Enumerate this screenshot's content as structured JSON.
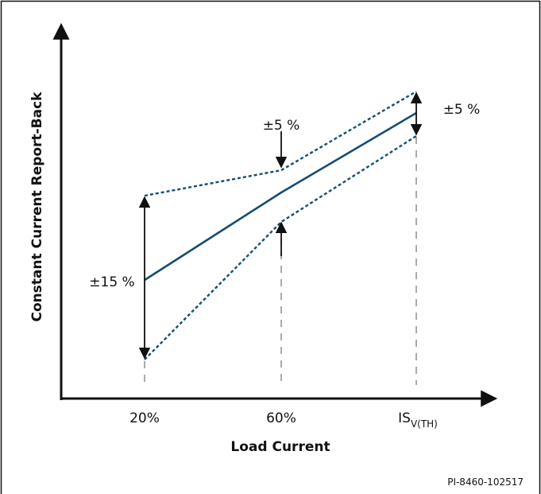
{
  "chart_data": {
    "type": "line",
    "title": "",
    "xlabel": "Load Current",
    "ylabel": "Constant Current Report-Back",
    "categories": [
      "20%",
      "60%",
      "IS_V(TH)"
    ],
    "x_tick_labels": [
      {
        "text": "20%"
      },
      {
        "text": "60%"
      },
      {
        "text": "IS",
        "subscript": "V(TH)"
      }
    ],
    "x": [
      20,
      60,
      100
    ],
    "series": [
      {
        "role": "nominal",
        "style": "solid",
        "values": [
          100,
          100,
          100
        ]
      },
      {
        "role": "upper-limit",
        "style": "dotted",
        "values": [
          115,
          105,
          105
        ]
      },
      {
        "role": "lower-limit",
        "style": "dotted",
        "values": [
          85,
          95,
          95
        ]
      }
    ],
    "tolerance_annotations": [
      {
        "text": "±15 %",
        "at": "20%"
      },
      {
        "text": "±5 %",
        "at": "60%"
      },
      {
        "text": "±5 %",
        "at": "IS_V(TH)"
      }
    ],
    "grid": false,
    "legend": "none",
    "y_ticks": "none",
    "figure_id": "PI-8460-102517"
  },
  "colors": {
    "nominal_line": "#144d73",
    "limit_lines": "#144d73",
    "axes": "#111111",
    "guides": "#aaaaaa",
    "frame": "#111111"
  }
}
